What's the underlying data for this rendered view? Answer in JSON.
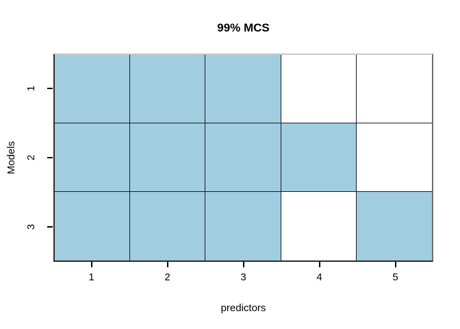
{
  "chart_data": {
    "type": "heatmap",
    "title": "99% MCS",
    "xlabel": "predictors",
    "ylabel": "Models",
    "x_categories": [
      "1",
      "2",
      "3",
      "4",
      "5"
    ],
    "y_categories": [
      "1",
      "2",
      "3"
    ],
    "matrix_rows_top_to_bottom": [
      [
        1,
        1,
        1,
        0,
        0
      ],
      [
        1,
        1,
        1,
        1,
        0
      ],
      [
        1,
        1,
        1,
        0,
        1
      ]
    ],
    "legend": "none",
    "grid": "on",
    "colors": {
      "included_cell": "#a0cee0",
      "excluded_cell": "#ffffff",
      "grid_line": "#1a1a1a",
      "box_top": "#c9c9c9",
      "box_right": "#6e6e6e",
      "box_dark": "#2b2b2b",
      "tick": "#000000",
      "text": "#000000",
      "background": "#ffffff"
    }
  }
}
